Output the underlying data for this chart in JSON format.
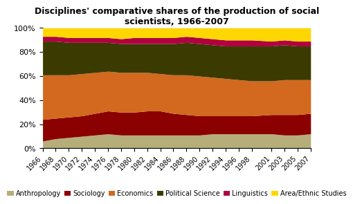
{
  "title": "Disciplines' comparative shares of the production of social\nscientists, 1966-2007",
  "years": [
    1966,
    1968,
    1970,
    1972,
    1974,
    1976,
    1978,
    1980,
    1982,
    1984,
    1986,
    1988,
    1990,
    1992,
    1994,
    1996,
    1998,
    2001,
    2003,
    2005,
    2007
  ],
  "disciplines": [
    "Anthropology",
    "Sociology",
    "Economics",
    "Political Science",
    "Linguistics",
    "Area/Ethnic Studies"
  ],
  "colors": [
    "#b5ad7a",
    "#8b0000",
    "#d2691e",
    "#3b3a00",
    "#b00040",
    "#ffd700"
  ],
  "data": {
    "Anthropology": [
      6,
      8,
      9,
      10,
      11,
      12,
      11,
      11,
      11,
      11,
      11,
      11,
      11,
      12,
      12,
      12,
      12,
      12,
      11,
      11,
      12
    ],
    "Sociology": [
      18,
      17,
      17,
      17,
      18,
      19,
      19,
      19,
      20,
      20,
      18,
      17,
      16,
      15,
      15,
      15,
      15,
      16,
      17,
      17,
      17
    ],
    "Economics": [
      37,
      36,
      35,
      35,
      34,
      33,
      33,
      33,
      32,
      31,
      32,
      33,
      33,
      32,
      31,
      30,
      29,
      28,
      29,
      29,
      28
    ],
    "Political Science": [
      28,
      28,
      27,
      26,
      25,
      24,
      24,
      24,
      24,
      25,
      26,
      27,
      27,
      27,
      27,
      28,
      29,
      29,
      29,
      28,
      28
    ],
    "Linguistics": [
      4,
      4,
      4,
      4,
      4,
      4,
      4,
      5,
      5,
      5,
      5,
      5,
      5,
      5,
      5,
      5,
      5,
      4,
      4,
      4,
      4
    ],
    "Area/Ethnic Studies": [
      7,
      7,
      8,
      8,
      8,
      8,
      9,
      8,
      8,
      8,
      8,
      7,
      8,
      9,
      10,
      10,
      10,
      11,
      10,
      11,
      11
    ]
  },
  "tick_labels": [
    "1966",
    "1968",
    "1970",
    "1972",
    "1974",
    "1976",
    "1978",
    "1980",
    "1982",
    "1984",
    "1986",
    "1988",
    "1990",
    "1992",
    "1994",
    "1996",
    "1998",
    "2001",
    "2003",
    "2005",
    "2007"
  ],
  "background_color": "#ffffff",
  "ylim": [
    0,
    100
  ],
  "title_fontsize": 9,
  "legend_fontsize": 7,
  "ytick_fontsize": 8,
  "xtick_fontsize": 7
}
